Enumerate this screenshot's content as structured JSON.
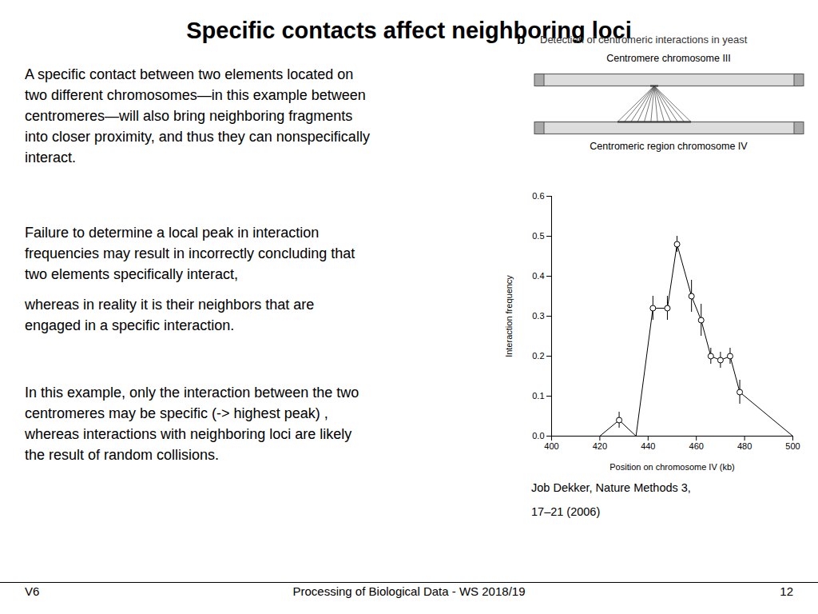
{
  "chart_data": {
    "type": "line",
    "title": "Specific contacts affect neighboring loci",
    "x": [
      400,
      420,
      428,
      435,
      442,
      448,
      452,
      458,
      462,
      466,
      470,
      474,
      478,
      500
    ],
    "values": [
      0.0,
      0.0,
      0.04,
      0.0,
      0.32,
      0.32,
      0.48,
      0.35,
      0.29,
      0.2,
      0.19,
      0.2,
      0.11,
      0.0
    ],
    "errors": [
      null,
      null,
      0.02,
      null,
      0.03,
      0.03,
      0.02,
      0.04,
      0.04,
      0.02,
      0.02,
      0.02,
      0.03,
      null
    ],
    "marker": "o",
    "xlim": [
      400,
      500
    ],
    "ylim": [
      0.0,
      0.6
    ],
    "xticks": [
      400,
      420,
      440,
      460,
      480,
      500
    ],
    "yticks": [
      {
        "value": 0.0,
        "label": "0.0"
      },
      0.1,
      0.2,
      0.3,
      0.4,
      0.5,
      0.6
    ],
    "x_label": "Position on chromosome IV (kb)",
    "y_label": "Interaction frequency",
    "grid": false,
    "annotations": [
      "A specific contact between two elements located on\ntwo different chromosomes—in this example between\ncentromeres—will also bring neighboring fragments\ninto closer proximity, and thus they can nonspecifically\ninteract.",
      "Failure to determine a local peak in interaction\nfrequencies may result in incorrectly concluding that\ntwo elements specifically interact,",
      "whereas in reality it is their neighbors that are\nengaged in a specific interaction.",
      "In this example, only the interaction between the two\ncentromeres may be specific (-> highest peak) ,\nwhereas interactions with neighboring loci are likely\nthe result of random collisions.",
      "b",
      "Detection of centromeric interactions in yeast",
      "Centromere chromosome III",
      "Centromeric region chromosome IV",
      "Job Dekker, Nature Methods 3,",
      "17–21 (2006)",
      "V6",
      "Processing of Biological Data - WS 2018/19",
      "12"
    ]
  }
}
